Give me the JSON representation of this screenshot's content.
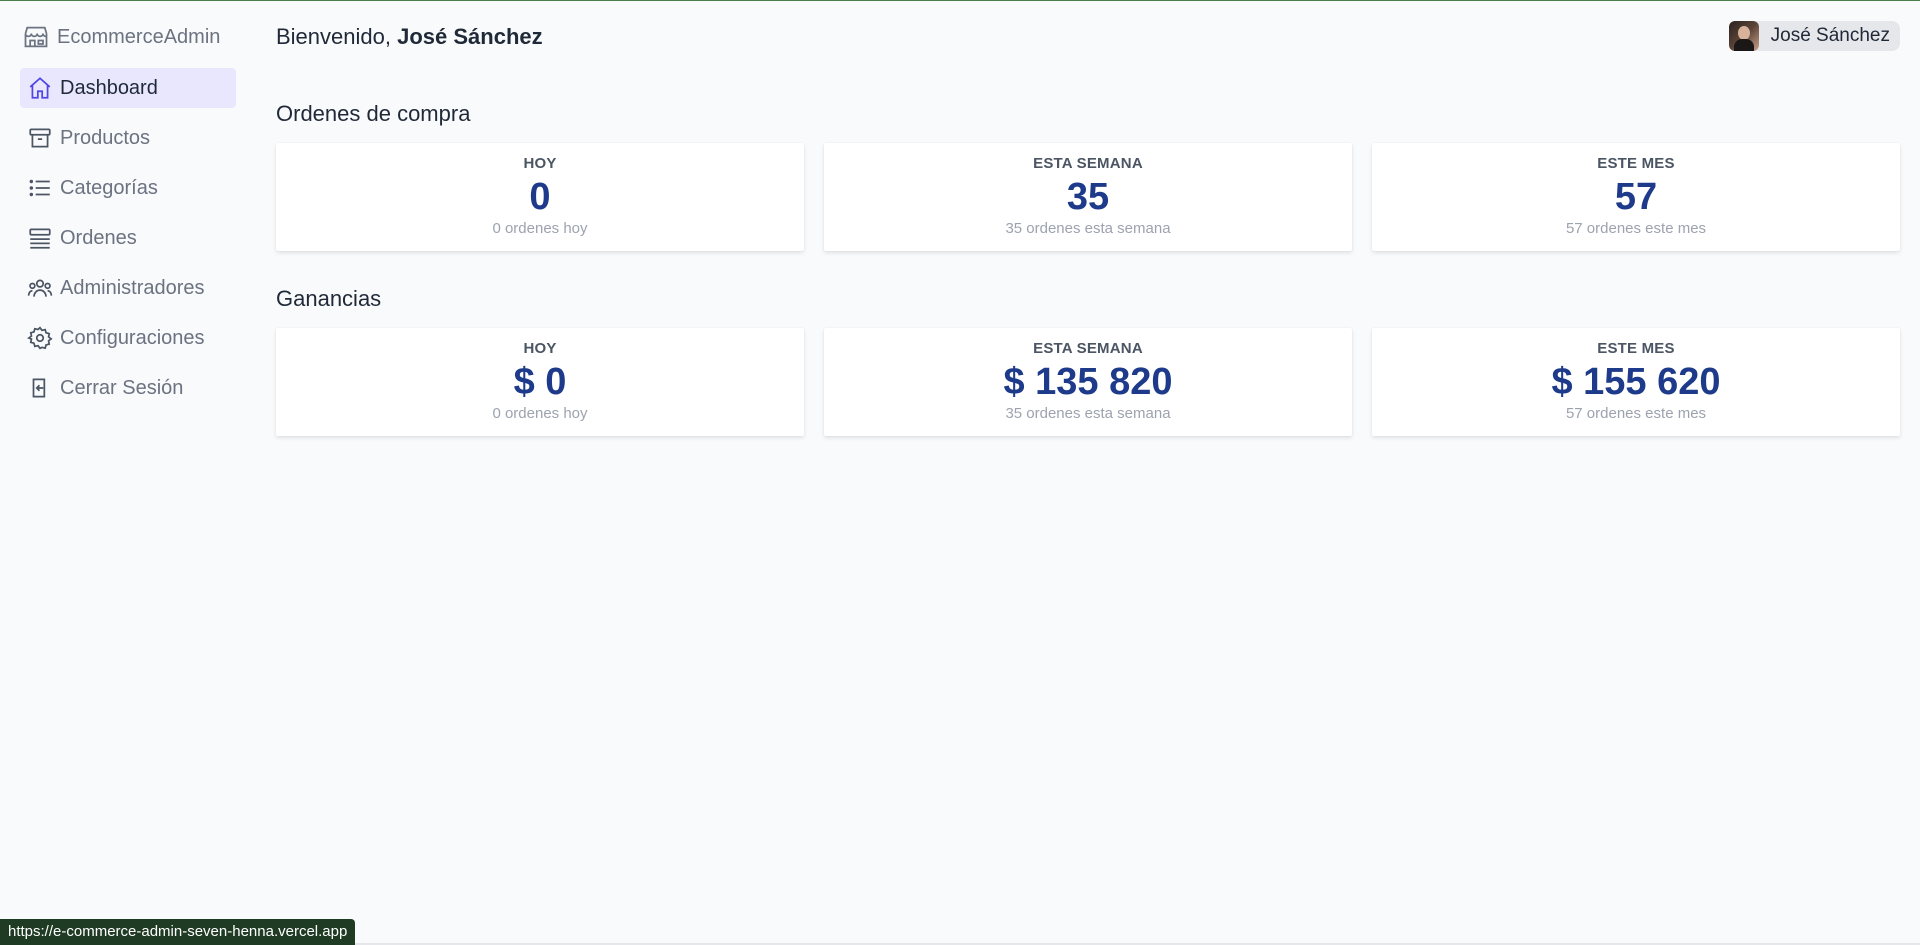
{
  "brand": {
    "name": "EcommerceAdmin",
    "icon": "store-icon"
  },
  "nav": {
    "items": [
      {
        "label": "Dashboard",
        "icon": "home-icon",
        "active": true
      },
      {
        "label": "Productos",
        "icon": "archive-box-icon"
      },
      {
        "label": "Categorías",
        "icon": "list-icon"
      },
      {
        "label": "Ordenes",
        "icon": "queue-list-icon"
      },
      {
        "label": "Administradores",
        "icon": "users-icon"
      },
      {
        "label": "Configuraciones",
        "icon": "gear-icon"
      },
      {
        "label": "Cerrar Sesión",
        "icon": "logout-icon"
      }
    ]
  },
  "header": {
    "welcome_prefix": "Bienvenido,",
    "user_name": "José Sánchez"
  },
  "user_menu": {
    "name": "José Sánchez"
  },
  "orders": {
    "title": "Ordenes de compra",
    "cards": [
      {
        "label": "HOY",
        "value": "0",
        "sub": "0 ordenes hoy"
      },
      {
        "label": "ESTA SEMANA",
        "value": "35",
        "sub": "35 ordenes esta semana"
      },
      {
        "label": "ESTE MES",
        "value": "57",
        "sub": "57 ordenes este mes"
      }
    ]
  },
  "earnings": {
    "title": "Ganancias",
    "cards": [
      {
        "label": "HOY",
        "value": "$ 0",
        "sub": "0 ordenes hoy"
      },
      {
        "label": "ESTA SEMANA",
        "value": "$ 135 820",
        "sub": "35 ordenes esta semana"
      },
      {
        "label": "ESTE MES",
        "value": "$ 155 620",
        "sub": "57 ordenes este mes"
      }
    ]
  },
  "status_url": "https://e-commerce-admin-seven-henna.vercel.app",
  "colors": {
    "accent": "#4f46e5",
    "active_bg": "#e9e7fe",
    "value": "#1e3a8a"
  }
}
